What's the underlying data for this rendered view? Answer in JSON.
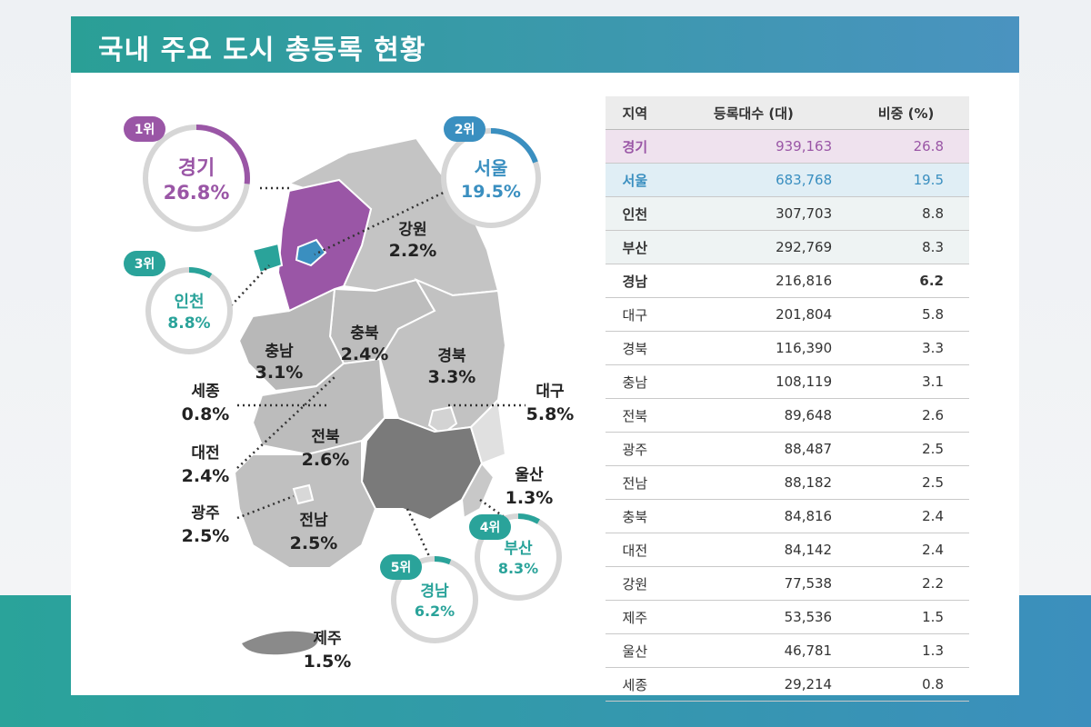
{
  "title": "국내 주요 도시 총등록 현황",
  "table": {
    "headers": [
      "지역",
      "등록대수 (대)",
      "비중 (%)"
    ],
    "rows": [
      {
        "region": "경기",
        "count": "939,163",
        "share": "26.8"
      },
      {
        "region": "서울",
        "count": "683,768",
        "share": "19.5"
      },
      {
        "region": "인천",
        "count": "307,703",
        "share": "8.8"
      },
      {
        "region": "부산",
        "count": "292,769",
        "share": "8.3"
      },
      {
        "region": "경남",
        "count": "216,816",
        "share": "6.2"
      },
      {
        "region": "대구",
        "count": "201,804",
        "share": "5.8"
      },
      {
        "region": "경북",
        "count": "116,390",
        "share": "3.3"
      },
      {
        "region": "충남",
        "count": "108,119",
        "share": "3.1"
      },
      {
        "region": "전북",
        "count": "89,648",
        "share": "2.6"
      },
      {
        "region": "광주",
        "count": "88,487",
        "share": "2.5"
      },
      {
        "region": "전남",
        "count": "88,182",
        "share": "2.5"
      },
      {
        "region": "충북",
        "count": "84,816",
        "share": "2.4"
      },
      {
        "region": "대전",
        "count": "84,142",
        "share": "2.4"
      },
      {
        "region": "강원",
        "count": "77,538",
        "share": "2.2"
      },
      {
        "region": "제주",
        "count": "53,536",
        "share": "1.5"
      },
      {
        "region": "울산",
        "count": "46,781",
        "share": "1.3"
      },
      {
        "region": "세종",
        "count": "29,214",
        "share": "0.8"
      }
    ]
  },
  "map": {
    "ranks": [
      {
        "rank": "1위",
        "name": "경기",
        "pct": "26.8%",
        "fraction": 0.268,
        "color": "#9a56a6"
      },
      {
        "rank": "2위",
        "name": "서울",
        "pct": "19.5%",
        "fraction": 0.195,
        "color": "#3a8fc0"
      },
      {
        "rank": "3위",
        "name": "인천",
        "pct": "8.8%",
        "fraction": 0.088,
        "color": "#2aa39a"
      },
      {
        "rank": "4위",
        "name": "부산",
        "pct": "8.3%",
        "fraction": 0.083,
        "color": "#2aa39a"
      },
      {
        "rank": "5위",
        "name": "경남",
        "pct": "6.2%",
        "fraction": 0.062,
        "color": "#2aa39a"
      }
    ],
    "regions": {
      "gangwon": {
        "name": "강원",
        "pct": "2.2%"
      },
      "chungbuk": {
        "name": "충북",
        "pct": "2.4%"
      },
      "chungnam": {
        "name": "충남",
        "pct": "3.1%"
      },
      "gyeongbuk": {
        "name": "경북",
        "pct": "3.3%"
      },
      "sejong": {
        "name": "세종",
        "pct": "0.8%"
      },
      "daegu": {
        "name": "대구",
        "pct": "5.8%"
      },
      "daejeon": {
        "name": "대전",
        "pct": "2.4%"
      },
      "jeonbuk": {
        "name": "전북",
        "pct": "2.6%"
      },
      "ulsan": {
        "name": "울산",
        "pct": "1.3%"
      },
      "gwangju": {
        "name": "광주",
        "pct": "2.5%"
      },
      "jeonnam": {
        "name": "전남",
        "pct": "2.5%"
      },
      "jeju": {
        "name": "제주",
        "pct": "1.5%"
      }
    }
  }
}
